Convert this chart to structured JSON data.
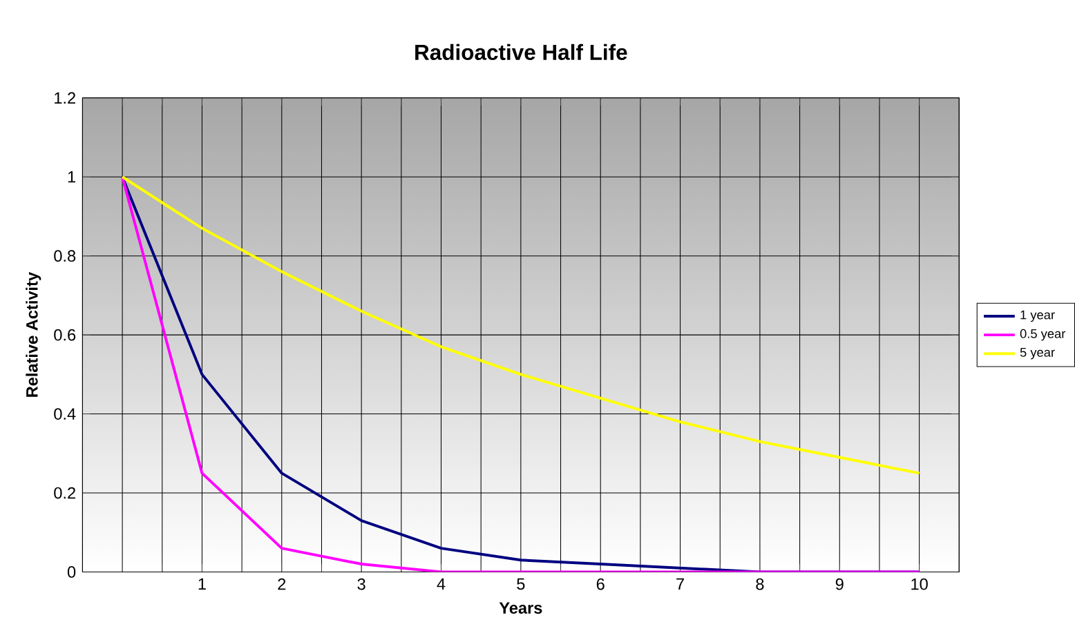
{
  "chart_data": {
    "type": "line",
    "title": "Radioactive Half Life",
    "xlabel": "Years",
    "ylabel": "Relative Activity",
    "x": [
      0,
      1,
      2,
      3,
      4,
      5,
      6,
      7,
      8,
      9,
      10
    ],
    "series": [
      {
        "name": "1 year",
        "color": "#000080",
        "values": [
          1,
          0.5,
          0.25,
          0.13,
          0.06,
          0.03,
          0.02,
          0.01,
          0,
          0,
          0
        ]
      },
      {
        "name": "0.5 year",
        "color": "#ff00ff",
        "values": [
          1,
          0.25,
          0.06,
          0.02,
          0,
          0,
          0,
          0,
          0,
          0,
          0
        ]
      },
      {
        "name": "5 year",
        "color": "#ffff00",
        "values": [
          1,
          0.87,
          0.76,
          0.66,
          0.57,
          0.5,
          0.44,
          0.38,
          0.33,
          0.29,
          0.25
        ]
      }
    ],
    "xlim": [
      -0.5,
      10.5
    ],
    "xticks": [
      {
        "value": -0.5,
        "label": null
      },
      {
        "value": 0,
        "label": null
      },
      {
        "value": 0.5,
        "label": null
      },
      1,
      {
        "value": 1.5,
        "label": null
      },
      2,
      {
        "value": 2.5,
        "label": null
      },
      3,
      {
        "value": 3.5,
        "label": null
      },
      4,
      {
        "value": 4.5,
        "label": null
      },
      5,
      {
        "value": 5.5,
        "label": null
      },
      6,
      {
        "value": 6.5,
        "label": null
      },
      7,
      {
        "value": 7.5,
        "label": null
      },
      8,
      {
        "value": 8.5,
        "label": null
      },
      9,
      {
        "value": 9.5,
        "label": null
      },
      10,
      {
        "value": 10.5,
        "label": null
      }
    ],
    "ylim": [
      0,
      1.2
    ],
    "yticks": [
      0,
      0.2,
      0.4,
      0.6,
      0.8,
      1,
      1.2
    ],
    "grid": true,
    "legend": "right",
    "marker": "none",
    "line_style": "solid"
  }
}
